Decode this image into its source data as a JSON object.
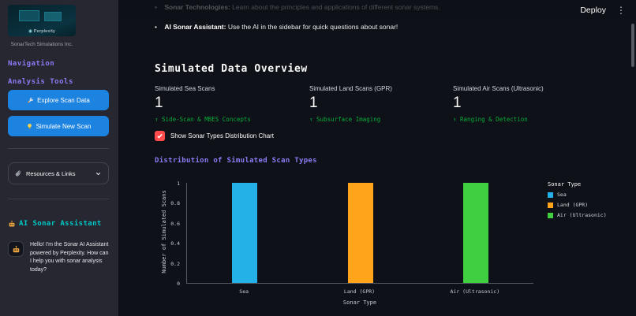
{
  "header": {
    "deploy_label": "Deploy",
    "menu_icon": "⋮"
  },
  "sidebar": {
    "logo": {
      "brand": "Perplexity",
      "caption": "SonarTech Simulations Inc."
    },
    "nav_heading": "Navigation",
    "tools_heading": "Analysis Tools",
    "buttons": [
      {
        "icon": "tools-icon",
        "label": "Explore Scan Data"
      },
      {
        "icon": "bulb-icon",
        "label": "Simulate New Scan"
      }
    ],
    "expander": {
      "icon": "paperclip-icon",
      "label": "Resources & Links"
    },
    "assistant": {
      "icon": "robot-icon",
      "heading": "AI Sonar Assistant",
      "message": "Hello! I'm the Sonar AI Assistant powered by Perplexity. How can I help you with sonar analysis today?"
    }
  },
  "main": {
    "bullets": [
      {
        "bold": "Sonar Technologies:",
        "text": "Learn about the principles and applications of different sonar systems."
      },
      {
        "bold": "AI Sonar Assistant:",
        "text": "Use the AI in the sidebar for quick questions about sonar!"
      }
    ],
    "title": "Simulated Data Overview",
    "metrics": [
      {
        "label": "Simulated Sea Scans",
        "value": "1",
        "delta": "↑ Side-Scan & MBES Concepts"
      },
      {
        "label": "Simulated Land Scans (GPR)",
        "value": "1",
        "delta": "↑ Subsurface Imaging"
      },
      {
        "label": "Simulated Air Scans (Ultrasonic)",
        "value": "1",
        "delta": "↑ Ranging & Detection"
      }
    ],
    "checkbox": {
      "checked": true,
      "label": "Show Sonar Types Distribution Chart"
    },
    "chart_title": "Distribution of Simulated Scan Types"
  },
  "chart_data": {
    "type": "bar",
    "title": "Distribution of Simulated Scan Types",
    "categories": [
      "Sea",
      "Land (GPR)",
      "Air (Ultrasonic)"
    ],
    "values": [
      1,
      1,
      1
    ],
    "colors": [
      "#23b1e8",
      "#ffa41b",
      "#40cf40"
    ],
    "xlabel": "Sonar Type",
    "ylabel": "Number of Simulated Scans",
    "ylim": [
      0,
      1
    ],
    "yticks": [
      0,
      0.2,
      0.4,
      0.6,
      0.8,
      1
    ],
    "legend": {
      "title": "Sonar Type",
      "entries": [
        "Sea",
        "Land (GPR)",
        "Air (Ultrasonic)"
      ],
      "position": "right"
    },
    "grid": false
  },
  "colors": {
    "background": "#0e1117",
    "sidebar_background": "#262730",
    "accent_purple": "#8b7cf6",
    "accent_teal": "#00c9c9",
    "button_blue": "#1c83e1",
    "delta_green": "#09ab3b",
    "checkbox_red": "#ff4b4b"
  }
}
